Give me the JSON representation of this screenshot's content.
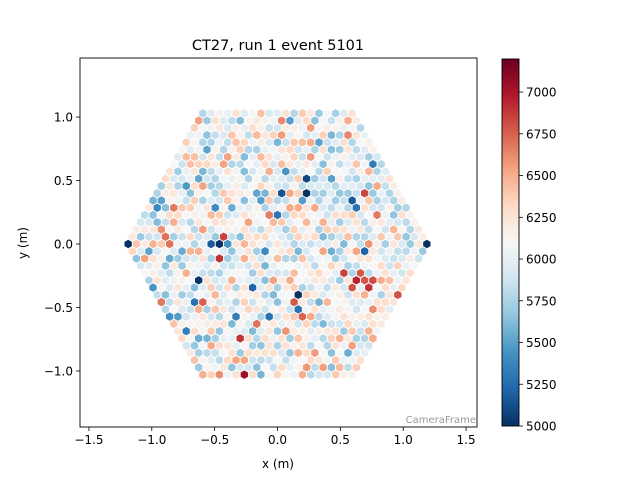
{
  "chart_data": {
    "type": "heatmap",
    "subtype": "hexagonal-camera-image",
    "title": "CT27, run 1 event 5101",
    "xlabel": "x  (m)",
    "ylabel": "y  (m)",
    "xlim": [
      -1.571,
      1.587
    ],
    "ylim": [
      -1.441,
      1.465
    ],
    "xticks": [
      -1.5,
      -1.0,
      -0.5,
      0.0,
      0.5,
      1.0,
      1.5
    ],
    "xtick_labels": [
      "−1.5",
      "−1.0",
      "−0.5",
      "0.0",
      "0.5",
      "1.0",
      "1.5"
    ],
    "yticks": [
      -1.0,
      -0.5,
      0.0,
      0.5,
      1.0
    ],
    "ytick_labels": [
      "−1.0",
      "−0.5",
      "0.0",
      "0.5",
      "1.0"
    ],
    "watermark": "CameraFrame",
    "colormap": "RdBu_r",
    "colorbar": {
      "vmin": 5000,
      "vmax": 7198,
      "ticks": [
        5000,
        5250,
        5500,
        5750,
        6000,
        6250,
        6500,
        6750,
        7000
      ],
      "tick_labels": [
        "5000",
        "5250",
        "5500",
        "5750",
        "6000",
        "6250",
        "6500",
        "6750",
        "7000"
      ]
    },
    "camera": {
      "outline": "hexagon",
      "radius_m": 1.2,
      "pixel_pitch_m": 0.066,
      "background_mean": 6050,
      "background_sd": 260,
      "random_seed": 5101
    },
    "notable_pixels": [
      {
        "x": -1.2,
        "y": 0.02,
        "value": 5000
      },
      {
        "x": -1.2,
        "y": -0.04,
        "value": 5000
      },
      {
        "x": -0.47,
        "y": 0.02,
        "value": 5010
      },
      {
        "x": 0.24,
        "y": 0.38,
        "value": 5000
      },
      {
        "x": 0.19,
        "y": -0.4,
        "value": 5005
      },
      {
        "x": 1.2,
        "y": -0.03,
        "value": 5000
      },
      {
        "x": 0.66,
        "y": -0.3,
        "value": 7198
      },
      {
        "x": 0.62,
        "y": -0.28,
        "value": 6950
      },
      {
        "x": 0.72,
        "y": -0.33,
        "value": 6900
      },
      {
        "x": 0.59,
        "y": -0.33,
        "value": 6800
      },
      {
        "x": 0.69,
        "y": -0.25,
        "value": 6780
      },
      {
        "x": 0.76,
        "y": -0.28,
        "value": 6820
      },
      {
        "x": 0.52,
        "y": -0.22,
        "value": 6850
      },
      {
        "x": -0.28,
        "y": -1.02,
        "value": 7050
      },
      {
        "x": -0.47,
        "y": -0.12,
        "value": 6900
      },
      {
        "x": -0.29,
        "y": -0.77,
        "value": 6900
      },
      {
        "x": 0.95,
        "y": -0.39,
        "value": 6800
      },
      {
        "x": -0.87,
        "y": 0.03,
        "value": 6700
      }
    ]
  }
}
